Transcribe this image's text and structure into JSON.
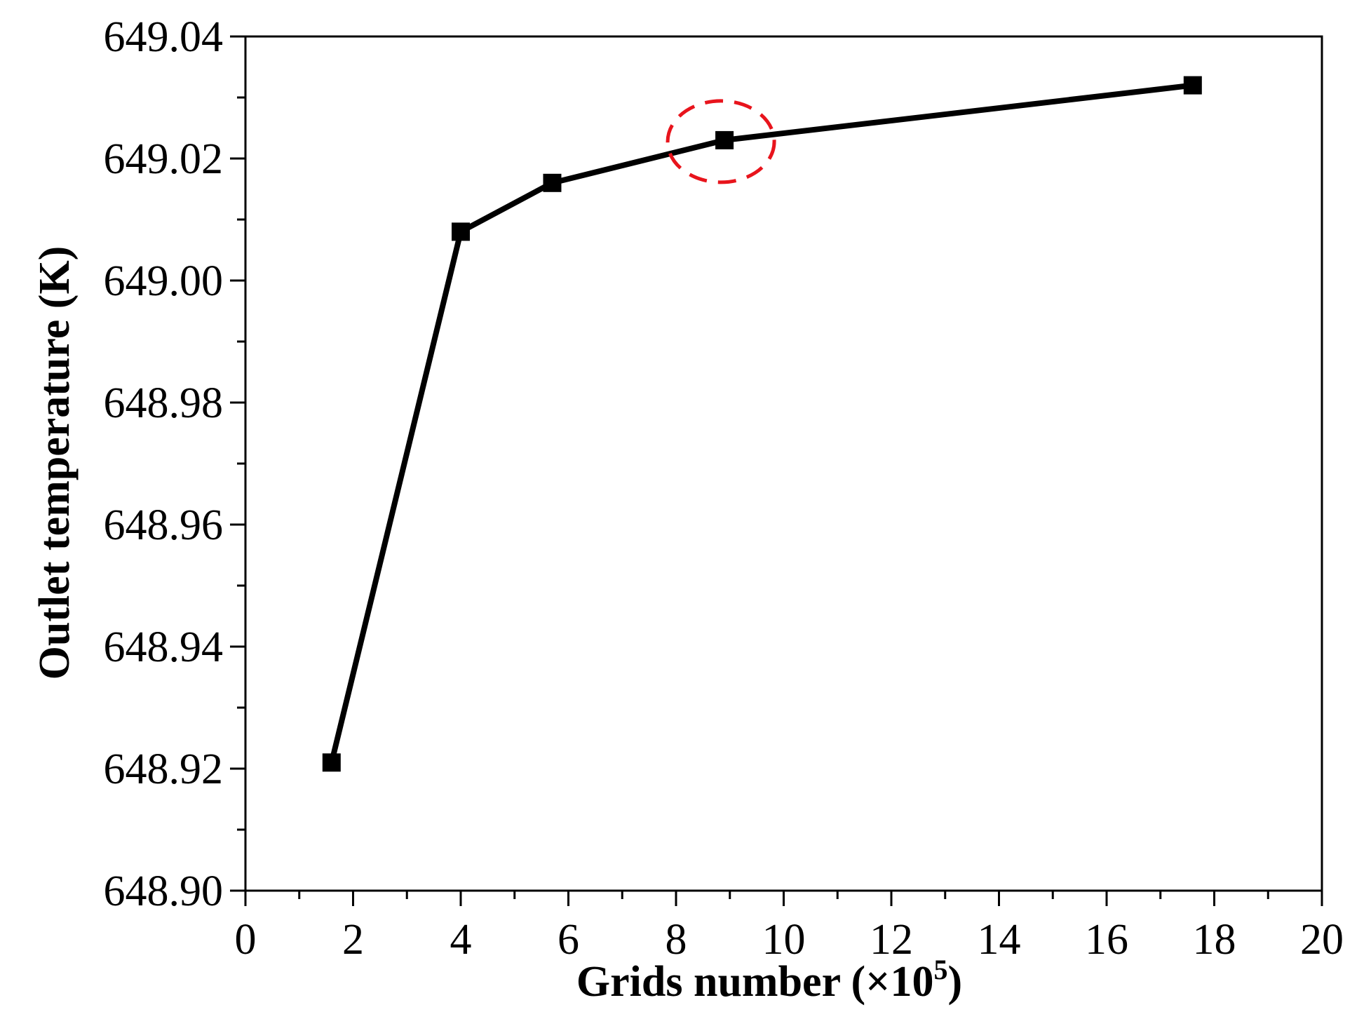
{
  "chart_data": {
    "type": "line",
    "title": "",
    "xlabel": "Grids number (×10",
    "xlabel_exponent": "5",
    "xlabel_suffix": ")",
    "ylabel": "Outlet temperature (K)",
    "xlim": [
      0,
      20
    ],
    "ylim": [
      648.9,
      649.04
    ],
    "x_major_ticks": [
      0,
      2,
      4,
      6,
      8,
      10,
      12,
      14,
      16,
      18,
      20
    ],
    "x_tick_labels": [
      "0",
      "2",
      "4",
      "6",
      "8",
      "10",
      "12",
      "14",
      "16",
      "18",
      "20"
    ],
    "y_major_ticks": [
      648.9,
      648.92,
      648.94,
      648.96,
      648.98,
      649.0,
      649.02,
      649.04
    ],
    "y_tick_labels": [
      "648.90",
      "648.92",
      "648.94",
      "648.96",
      "648.98",
      "649.00",
      "649.02",
      "649.04"
    ],
    "grid": false,
    "series": [
      {
        "marker": "square",
        "color": "#000000",
        "x": [
          1.6,
          4.0,
          5.7,
          8.9,
          17.6
        ],
        "y": [
          648.921,
          649.008,
          649.016,
          649.023,
          649.032
        ]
      }
    ],
    "annotations": [
      {
        "type": "dashed-ellipse",
        "color": "#e8141c",
        "highlights_point_index": 3
      }
    ]
  }
}
